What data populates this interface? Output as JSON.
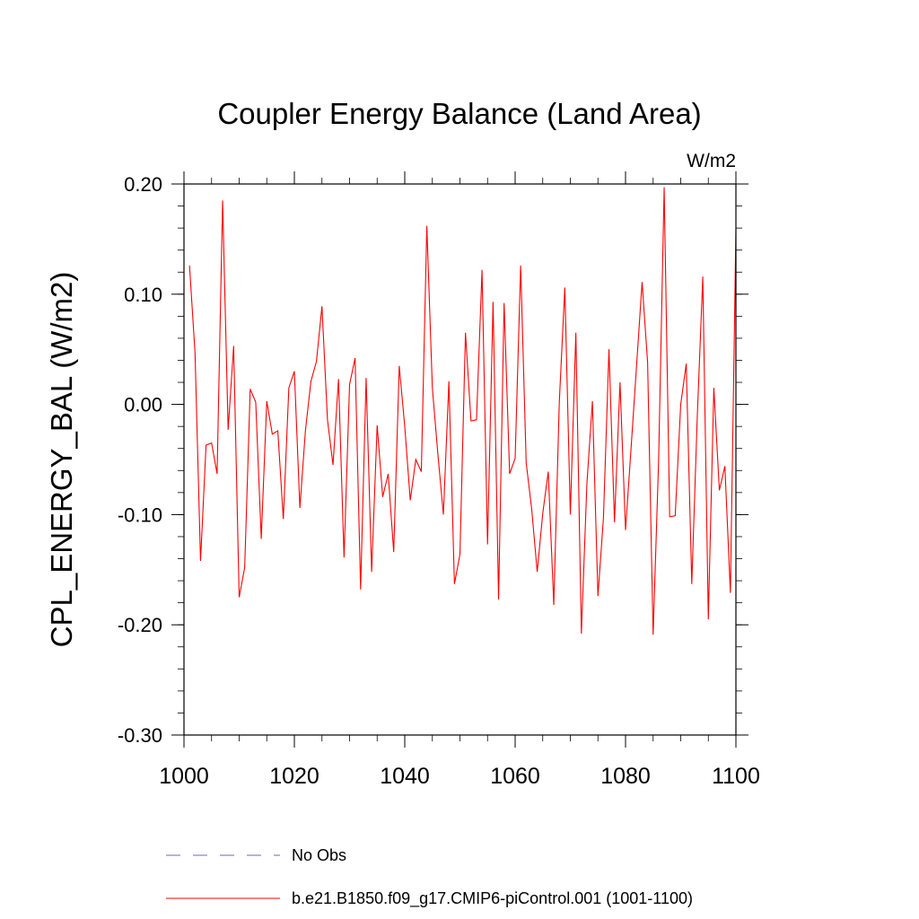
{
  "chart_data": {
    "type": "line",
    "title": "Coupler Energy Balance (Land Area)",
    "units_label": "W/m2",
    "ylabel": "CPL_ENERGY_BAL  (W/m2)",
    "xlabel": "",
    "xlim": [
      1000,
      1100
    ],
    "ylim": [
      -0.3,
      0.2
    ],
    "x_ticks": [
      1000,
      1020,
      1040,
      1060,
      1080,
      1100
    ],
    "x_tick_labels": [
      "1000",
      "1020",
      "1040",
      "1060",
      "1080",
      "1100"
    ],
    "y_ticks": [
      0.2,
      0.1,
      0.0,
      -0.1,
      -0.2,
      -0.3
    ],
    "y_tick_labels": [
      "0.20",
      "0.10",
      "0.00",
      "-0.10",
      "-0.20",
      "-0.30"
    ],
    "legend": [
      {
        "label": "No Obs",
        "style": "dashed",
        "color": "#6a6ab8"
      },
      {
        "label": "b.e21.B1850.f09_g17.CMIP6-piControl.001 (1001-1100)",
        "style": "solid",
        "color": "#ff0000"
      }
    ],
    "series": [
      {
        "name": "b.e21.B1850.f09_g17.CMIP6-piControl.001 (1001-1100)",
        "color": "#ff0000",
        "x": [
          1001,
          1002,
          1003,
          1004,
          1005,
          1006,
          1007,
          1008,
          1009,
          1010,
          1011,
          1012,
          1013,
          1014,
          1015,
          1016,
          1017,
          1018,
          1019,
          1020,
          1021,
          1022,
          1023,
          1024,
          1025,
          1026,
          1027,
          1028,
          1029,
          1030,
          1031,
          1032,
          1033,
          1034,
          1035,
          1036,
          1037,
          1038,
          1039,
          1040,
          1041,
          1042,
          1043,
          1044,
          1045,
          1046,
          1047,
          1048,
          1049,
          1050,
          1051,
          1052,
          1053,
          1054,
          1055,
          1056,
          1057,
          1058,
          1059,
          1060,
          1061,
          1062,
          1063,
          1064,
          1065,
          1066,
          1067,
          1068,
          1069,
          1070,
          1071,
          1072,
          1073,
          1074,
          1075,
          1076,
          1077,
          1078,
          1079,
          1080,
          1081,
          1082,
          1083,
          1084,
          1085,
          1086,
          1087,
          1088,
          1089,
          1090,
          1091,
          1092,
          1093,
          1094,
          1095,
          1096,
          1097,
          1098,
          1099,
          1100
        ],
        "values": [
          0.126,
          0.047,
          -0.142,
          -0.037,
          -0.035,
          -0.063,
          0.185,
          -0.023,
          0.053,
          -0.175,
          -0.148,
          0.014,
          0.002,
          -0.122,
          0.003,
          -0.027,
          -0.024,
          -0.104,
          0.015,
          0.03,
          -0.094,
          -0.024,
          0.021,
          0.039,
          0.089,
          -0.014,
          -0.055,
          0.023,
          -0.139,
          0.018,
          0.042,
          -0.168,
          0.024,
          -0.152,
          -0.019,
          -0.084,
          -0.063,
          -0.134,
          0.035,
          -0.02,
          -0.087,
          -0.05,
          -0.061,
          0.162,
          0.015,
          -0.045,
          -0.1,
          0.021,
          -0.163,
          -0.136,
          0.065,
          -0.015,
          -0.014,
          0.122,
          -0.127,
          0.093,
          -0.177,
          0.092,
          -0.063,
          -0.049,
          0.126,
          -0.053,
          -0.095,
          -0.152,
          -0.099,
          -0.061,
          -0.182,
          0.002,
          0.106,
          -0.1,
          0.065,
          -0.208,
          -0.072,
          0.003,
          -0.174,
          -0.103,
          0.05,
          -0.107,
          0.02,
          -0.114,
          -0.04,
          0.035,
          0.111,
          0.038,
          -0.209,
          -0.05,
          0.197,
          -0.102,
          -0.101,
          0.0,
          0.037,
          -0.163,
          -0.011,
          0.116,
          -0.195,
          0.015,
          -0.078,
          -0.056,
          -0.171,
          0.158
        ]
      }
    ]
  }
}
